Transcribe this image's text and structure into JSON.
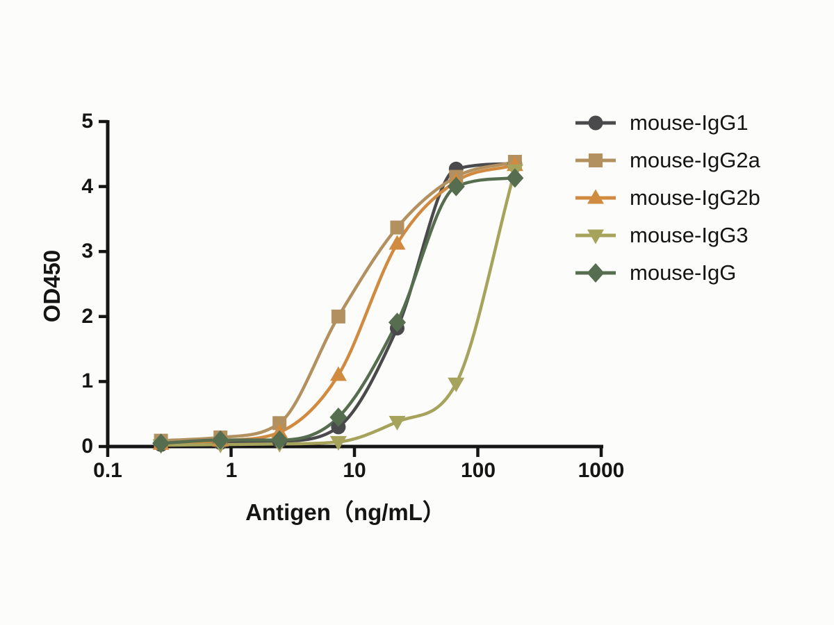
{
  "chart_data": {
    "type": "line",
    "title": "",
    "xlabel": "Antigen（ng/mL）",
    "ylabel": "OD450",
    "x_scale": "log",
    "xlim": [
      0.1,
      1000
    ],
    "ylim": [
      0,
      5
    ],
    "x_ticks": [
      0.1,
      1,
      10,
      100,
      1000
    ],
    "x_tick_labels": [
      "0.1",
      "1",
      "10",
      "100",
      "1000"
    ],
    "y_ticks": [
      0,
      1,
      2,
      3,
      4,
      5
    ],
    "y_tick_labels": [
      "0",
      "1",
      "2",
      "3",
      "4",
      "5"
    ],
    "grid": false,
    "legend_position": "right",
    "x": [
      0.27,
      0.82,
      2.47,
      7.41,
      22.2,
      66.7,
      200
    ],
    "series": [
      {
        "name": "mouse-IgG1",
        "marker": "circle",
        "color": "#4a4a4c",
        "values": [
          0.03,
          0.06,
          0.08,
          0.3,
          1.82,
          4.27,
          4.35
        ]
      },
      {
        "name": "mouse-IgG2a",
        "marker": "square",
        "color": "#b2905f",
        "values": [
          0.09,
          0.14,
          0.36,
          2.0,
          3.37,
          4.15,
          4.38
        ]
      },
      {
        "name": "mouse-IgG2b",
        "marker": "triangle-up",
        "color": "#d08b40",
        "values": [
          0.04,
          0.09,
          0.22,
          1.1,
          3.12,
          4.08,
          4.33
        ]
      },
      {
        "name": "mouse-IgG3",
        "marker": "triangle-down",
        "color": "#a6a35c",
        "values": [
          0.02,
          0.03,
          0.04,
          0.07,
          0.38,
          0.97,
          4.25
        ]
      },
      {
        "name": "mouse-IgG",
        "marker": "diamond",
        "color": "#566d50",
        "values": [
          0.05,
          0.1,
          0.1,
          0.45,
          1.91,
          4.0,
          4.13
        ]
      }
    ]
  },
  "colors": {
    "axis": "#151515",
    "text": "#151515",
    "background": "#fcfcfa"
  }
}
